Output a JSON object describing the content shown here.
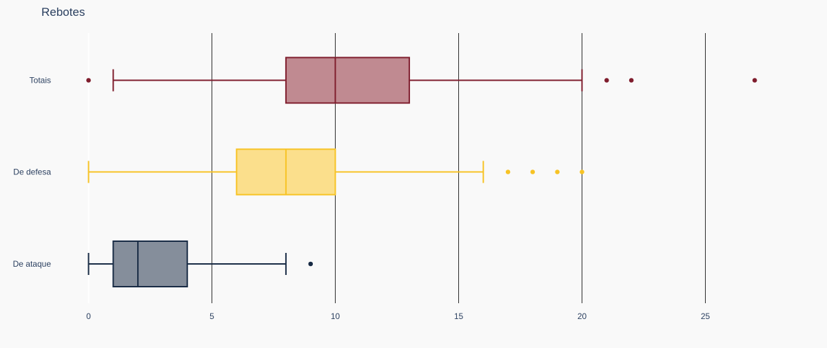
{
  "chart_data": {
    "type": "box",
    "orientation": "horizontal",
    "title": "Rebotes",
    "xlabel": "",
    "ylabel": "",
    "xlim": [
      0,
      30
    ],
    "x_ticks": [
      0,
      5,
      10,
      15,
      20,
      25
    ],
    "x_tick_labels": [
      "0",
      "5",
      "10",
      "15",
      "20",
      "25"
    ],
    "grid": "vertical",
    "legend": "none",
    "series": [
      {
        "name": "Totais",
        "color": "#7f1d2d",
        "fill": "#c08a91",
        "lower_fence": 1,
        "q1": 8,
        "median": 10,
        "q3": 13,
        "upper_fence": 20,
        "outliers": [
          0,
          21,
          22,
          27
        ]
      },
      {
        "name": "De defesa",
        "color": "#f7c325",
        "fill": "#fbdf8c",
        "lower_fence": 0,
        "q1": 6,
        "median": 8,
        "q3": 10,
        "upper_fence": 16,
        "outliers": [
          17,
          18,
          19,
          20
        ]
      },
      {
        "name": "De ataque",
        "color": "#172a44",
        "fill": "#858e9b",
        "lower_fence": 0,
        "q1": 1,
        "median": 2,
        "q3": 4,
        "upper_fence": 8,
        "outliers": [
          9
        ]
      }
    ]
  }
}
